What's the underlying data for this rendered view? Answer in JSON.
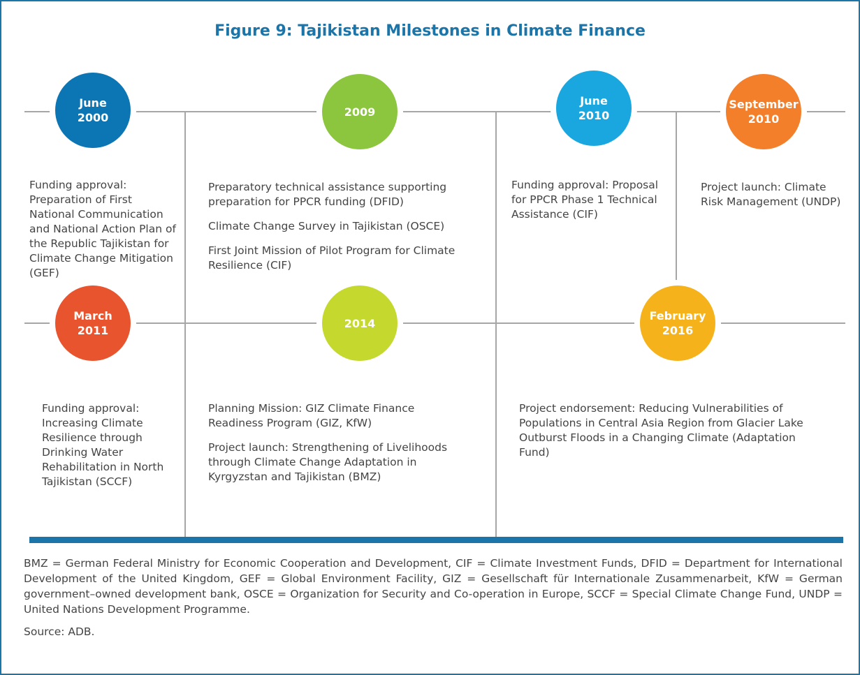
{
  "title": "Figure 9: Tajikistan Milestones in Climate Finance",
  "milestones": [
    {
      "date": [
        "June",
        "2000"
      ],
      "items": [
        "Funding approval: Preparation of First National Communication and National Action Plan of the  Republic Tajikistan for Climate Change Mitigation (GEF)"
      ]
    },
    {
      "date": [
        "2009"
      ],
      "items": [
        "Preparatory technical assistance supporting preparation for PPCR funding (DFID)",
        "Climate Change Survey in Tajikistan (OSCE)",
        "First Joint Mission of Pilot Program for Climate Resilience (CIF)"
      ]
    },
    {
      "date": [
        "June",
        "2010"
      ],
      "items": [
        "Funding approval: Proposal for PPCR Phase 1 Technical Assistance (CIF)"
      ]
    },
    {
      "date": [
        "September",
        "2010"
      ],
      "items": [
        "Project launch: Climate Risk Management (UNDP)"
      ]
    },
    {
      "date": [
        "March",
        "2011"
      ],
      "items": [
        "Funding approval: Increasing Climate Resilience through Drinking Water Rehabilitation in North Tajikistan (SCCF)"
      ]
    },
    {
      "date": [
        "2014"
      ],
      "items": [
        "Planning Mission: GIZ Climate Finance Readiness Program (GIZ, KfW)",
        "Project launch: Strengthening of Livelihoods through Climate Change Adaptation in Kyrgyzstan and Tajikistan (BMZ)"
      ]
    },
    {
      "date": [
        "February",
        "2016"
      ],
      "items": [
        "Project endorsement: Reducing Vulnerabilities of Populations in Central Asia Region from Glacier Lake Outburst Floods in a Changing Climate (Adaptation Fund)"
      ]
    }
  ],
  "footnote": "BMZ = German Federal Ministry for Economic Cooperation and Development, CIF = Climate Investment Funds, DFID = Department for International Development of the United Kingdom, GEF = Global Environment Facility, GIZ = Gesellschaft für Internationale Zusammenarbeit, KfW = German government–owned development bank, OSCE = Organization for Security and Co-operation in Europe, SCCF = Special Climate Change Fund, UNDP = United Nations Development Programme.",
  "source": "Source: ADB."
}
